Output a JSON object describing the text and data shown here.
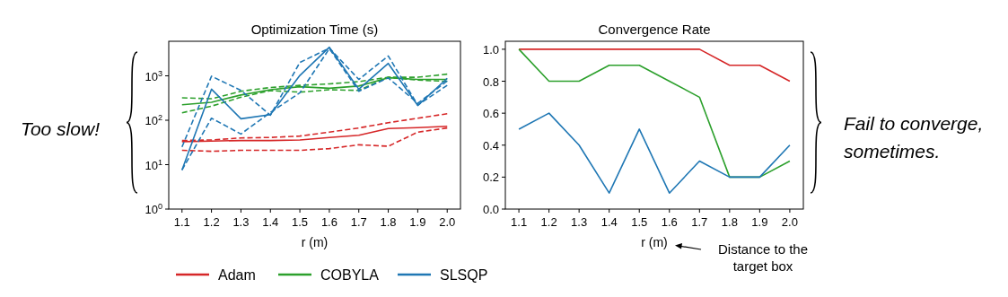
{
  "chart_data": [
    {
      "type": "line",
      "title": "Optimization Time (s)",
      "xlabel": "r (m)",
      "log": true,
      "legend": "bottom",
      "x": [
        1.1,
        1.2,
        1.3,
        1.4,
        1.5,
        1.6,
        1.7,
        1.8,
        1.9,
        2.0
      ],
      "xlim": [
        1.055,
        2.045
      ],
      "xticks": [
        {
          "value": 1.1,
          "label": "1.1"
        },
        {
          "value": 1.2,
          "label": "1.2"
        },
        {
          "value": 1.3,
          "label": "1.3"
        },
        {
          "value": 1.4,
          "label": "1.4"
        },
        {
          "value": 1.5,
          "label": "1.5"
        },
        {
          "value": 1.6,
          "label": "1.6"
        },
        {
          "value": 1.7,
          "label": "1.7"
        },
        {
          "value": 1.8,
          "label": "1.8"
        },
        {
          "value": 1.9,
          "label": "1.9"
        },
        {
          "value": 2.0,
          "label": "2.0"
        }
      ],
      "ylim": [
        1,
        6000
      ],
      "yticks": [
        {
          "value": 1,
          "label": "10$^{0}$"
        },
        {
          "value": 10,
          "label": "10$^{1}$"
        },
        {
          "value": 100,
          "label": "10$^{2}$"
        },
        {
          "value": 1000,
          "label": "10$^{3}$"
        }
      ],
      "annotations": [
        "Too slow!"
      ],
      "series": [
        {
          "name": "Adam",
          "color": "#d62728",
          "line_style": "solid",
          "values": [
            33,
            34,
            35,
            35,
            36,
            41,
            46,
            65,
            68,
            73
          ]
        },
        {
          "color": "#d62728",
          "line_style": "dashed",
          "values": [
            35,
            36,
            40,
            41,
            44,
            54,
            67,
            88,
            111,
            140
          ]
        },
        {
          "color": "#d62728",
          "line_style": "dashed",
          "values": [
            21,
            20,
            21,
            21,
            21,
            23,
            28,
            26,
            54,
            67
          ]
        },
        {
          "name": "COBYLA",
          "color": "#2ca02c",
          "line_style": "solid",
          "values": [
            224,
            254,
            370,
            485,
            570,
            525,
            590,
            905,
            830,
            830
          ]
        },
        {
          "color": "#2ca02c",
          "line_style": "dashed",
          "values": [
            320,
            305,
            450,
            545,
            610,
            660,
            740,
            930,
            930,
            1090
          ]
        },
        {
          "color": "#2ca02c",
          "line_style": "dashed",
          "values": [
            147,
            208,
            330,
            465,
            430,
            485,
            470,
            930,
            800,
            750
          ]
        },
        {
          "name": "SLSQP",
          "color": "#1f77b4",
          "line_style": "solid",
          "values": [
            7.6,
            500,
            108,
            134,
            1020,
            4400,
            500,
            1900,
            215,
            880
          ]
        },
        {
          "color": "#1f77b4",
          "line_style": "dashed",
          "values": [
            25,
            980,
            470,
            130,
            2000,
            4200,
            830,
            2800,
            220,
            610
          ]
        },
        {
          "color": "#1f77b4",
          "line_style": "dashed",
          "values": [
            7.6,
            111,
            49,
            150,
            415,
            4100,
            450,
            900,
            240,
            770
          ]
        }
      ]
    },
    {
      "type": "line",
      "title": "Convergence Rate",
      "xlabel": "r (m)",
      "x": [
        1.1,
        1.2,
        1.3,
        1.4,
        1.5,
        1.6,
        1.7,
        1.8,
        1.9,
        2.0
      ],
      "xlim": [
        1.055,
        2.045
      ],
      "xticks": [
        {
          "value": 1.1,
          "label": "1.1"
        },
        {
          "value": 1.2,
          "label": "1.2"
        },
        {
          "value": 1.3,
          "label": "1.3"
        },
        {
          "value": 1.4,
          "label": "1.4"
        },
        {
          "value": 1.5,
          "label": "1.5"
        },
        {
          "value": 1.6,
          "label": "1.6"
        },
        {
          "value": 1.7,
          "label": "1.7"
        },
        {
          "value": 1.8,
          "label": "1.8"
        },
        {
          "value": 1.9,
          "label": "1.9"
        },
        {
          "value": 2.0,
          "label": "2.0"
        }
      ],
      "ylim": [
        0,
        1.05
      ],
      "yticks": [
        {
          "value": 0,
          "label": "0.0"
        },
        {
          "value": 0.2,
          "label": "0.2"
        },
        {
          "value": 0.4,
          "label": "0.4"
        },
        {
          "value": 0.6,
          "label": "0.6"
        },
        {
          "value": 0.8,
          "label": "0.8"
        },
        {
          "value": 1.0,
          "label": "1.0"
        }
      ],
      "annotations": [
        "Fail to converge, sometimes.",
        "Distance to the target box"
      ],
      "series": [
        {
          "color": "#d62728",
          "values": [
            1.0,
            1.0,
            1.0,
            1.0,
            1.0,
            1.0,
            1.0,
            0.9,
            0.9,
            0.8
          ]
        },
        {
          "color": "#2ca02c",
          "values": [
            1.0,
            0.8,
            0.8,
            0.9,
            0.9,
            0.8,
            0.7,
            0.2,
            0.2,
            0.3
          ]
        },
        {
          "color": "#1f77b4",
          "values": [
            0.5,
            0.6,
            0.4,
            0.1,
            0.5,
            0.1,
            0.3,
            0.2,
            0.2,
            0.4
          ]
        }
      ]
    }
  ]
}
